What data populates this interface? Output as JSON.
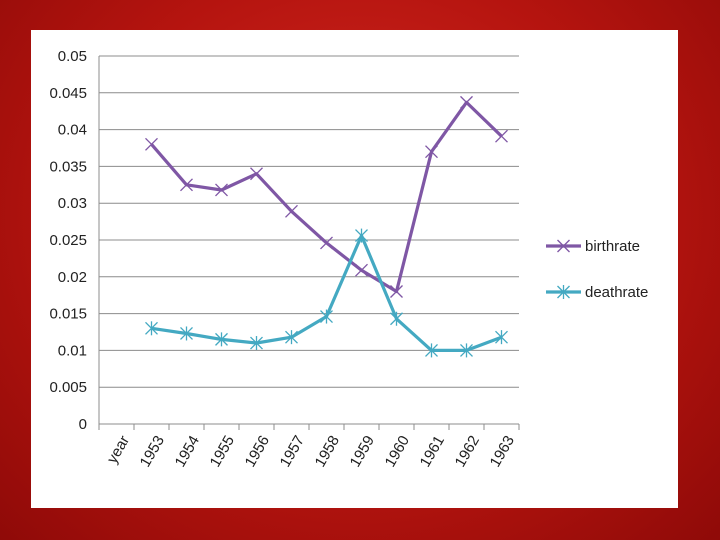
{
  "chart_data": {
    "type": "line",
    "categories": [
      "year",
      "1953",
      "1954",
      "1955",
      "1956",
      "1957",
      "1958",
      "1959",
      "1960",
      "1961",
      "1962",
      "1963"
    ],
    "ylim": [
      0,
      0.05
    ],
    "yticks": [
      "0",
      "0.005",
      "0.01",
      "0.015",
      "0.02",
      "0.025",
      "0.03",
      "0.035",
      "0.04",
      "0.045",
      "0.05"
    ],
    "grid": true,
    "legend_position": "right",
    "series": [
      {
        "name": "birthrate",
        "color": "#7f57a5",
        "marker": "x-star",
        "values": [
          null,
          0.038,
          0.0325,
          0.0318,
          0.034,
          0.0289,
          0.0246,
          0.0209,
          0.018,
          0.037,
          0.0437,
          0.0391
        ]
      },
      {
        "name": "deathrate",
        "color": "#44a9c2",
        "marker": "star",
        "values": [
          null,
          0.013,
          0.0123,
          0.0115,
          0.011,
          0.0118,
          0.0146,
          0.0256,
          0.0143,
          0.01,
          0.01,
          0.0118
        ]
      }
    ]
  }
}
